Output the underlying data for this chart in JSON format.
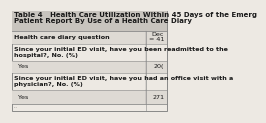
{
  "title_line1": "Table 4   Health Care Utilization Within 45 Days of the Emerg",
  "title_line2": "Patient Report By Use of a Health Care Diary",
  "col_header_line1": "Dec",
  "col_header_line2": "= 41",
  "rows": [
    {
      "label": "Health care diary question",
      "value": "",
      "bold": true,
      "indent": false,
      "shade": true
    },
    {
      "label": "Since your initial ED visit, have you been readmitted to the\nhospital?, No. (%)",
      "value": "",
      "bold": true,
      "indent": false,
      "shade": false
    },
    {
      "label": "  Yes",
      "value": "20(",
      "bold": false,
      "indent": true,
      "shade": true
    },
    {
      "label": "Since your initial ED visit, have you had an office visit with a\nphysician?, No. (%)",
      "value": "",
      "bold": true,
      "indent": false,
      "shade": false
    },
    {
      "label": "  Yes",
      "value": "271",
      "bold": false,
      "indent": true,
      "shade": true
    }
  ],
  "bg_color": "#ede9e3",
  "shade_color": "#dedad4",
  "border_color": "#888888",
  "title_bg": "#c8c4be",
  "text_color": "#1a1a1a",
  "title_fontsize": 5.0,
  "label_fontsize": 4.6,
  "col_header_fontsize": 4.6
}
